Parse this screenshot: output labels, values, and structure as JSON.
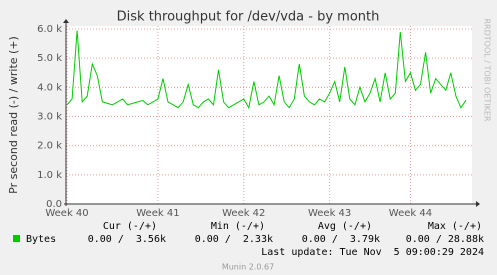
{
  "chart_data": {
    "type": "line",
    "title": "Disk throughput for /dev/vda - by month",
    "y_label": "Pr second read (-) / write (+)",
    "watermark": "RRDTOOL / TOBI OETIKER",
    "categories": [
      "Week 40",
      null,
      null,
      null,
      null,
      null,
      null,
      null,
      null,
      null,
      null,
      null,
      null,
      null,
      null,
      null,
      null,
      null,
      "Week 41",
      null,
      null,
      null,
      null,
      null,
      null,
      null,
      null,
      null,
      null,
      null,
      null,
      null,
      null,
      null,
      null,
      "Week 42",
      null,
      null,
      null,
      null,
      null,
      null,
      null,
      null,
      null,
      null,
      null,
      null,
      null,
      null,
      null,
      null,
      "Week 43",
      null,
      null,
      null,
      null,
      null,
      null,
      null,
      null,
      null,
      null,
      null,
      null,
      null,
      null,
      null,
      "Week 44",
      null,
      null,
      null,
      null,
      null,
      null,
      null,
      null,
      null,
      null,
      null
    ],
    "series": [
      {
        "name": "Bytes",
        "color": "#00cc00",
        "values": [
          3400,
          3600,
          5950,
          3500,
          3700,
          4800,
          4400,
          3500,
          3450,
          3400,
          3500,
          3600,
          3400,
          3450,
          3500,
          3550,
          3400,
          3500,
          3600,
          4300,
          3500,
          3400,
          3300,
          3500,
          4100,
          3400,
          3300,
          3500,
          3600,
          3400,
          4600,
          3500,
          3300,
          3400,
          3500,
          3600,
          3300,
          4200,
          3400,
          3500,
          3700,
          3400,
          4400,
          3500,
          3300,
          3600,
          4800,
          3700,
          3500,
          3400,
          3600,
          3500,
          3800,
          4200,
          3500,
          4700,
          3600,
          3400,
          4000,
          3500,
          3800,
          4300,
          3500,
          4500,
          3600,
          3800,
          5900,
          4200,
          4500,
          3900,
          4100,
          5200,
          3800,
          4300,
          4100,
          3900,
          4500,
          3700,
          3300,
          3560
        ]
      }
    ],
    "ylim": [
      0,
      6000
    ],
    "yticks": [
      {
        "value": 0,
        "label": "0.0"
      },
      {
        "value": 1000,
        "label": "1.0 k"
      },
      {
        "value": 2000,
        "label": "2.0 k"
      },
      {
        "value": 3000,
        "label": "3.0 k"
      },
      {
        "value": 4000,
        "label": "4.0 k"
      },
      {
        "value": 5000,
        "label": "5.0 k"
      },
      {
        "value": 6000,
        "label": "6.0 k"
      }
    ],
    "grid": true,
    "legend": {
      "headers": [
        "Cur (-/+)",
        "Min (-/+)",
        "Avg (-/+)",
        "Max (-/+)"
      ],
      "cells": [
        "0.00 /  3.56k",
        "0.00 /  2.33k",
        "0.00 /  3.79k",
        "0.00 / 28.88k"
      ]
    },
    "last_update": "Last update: Tue Nov  5 09:00:29 2024",
    "footer": "Munin 2.0.67"
  }
}
